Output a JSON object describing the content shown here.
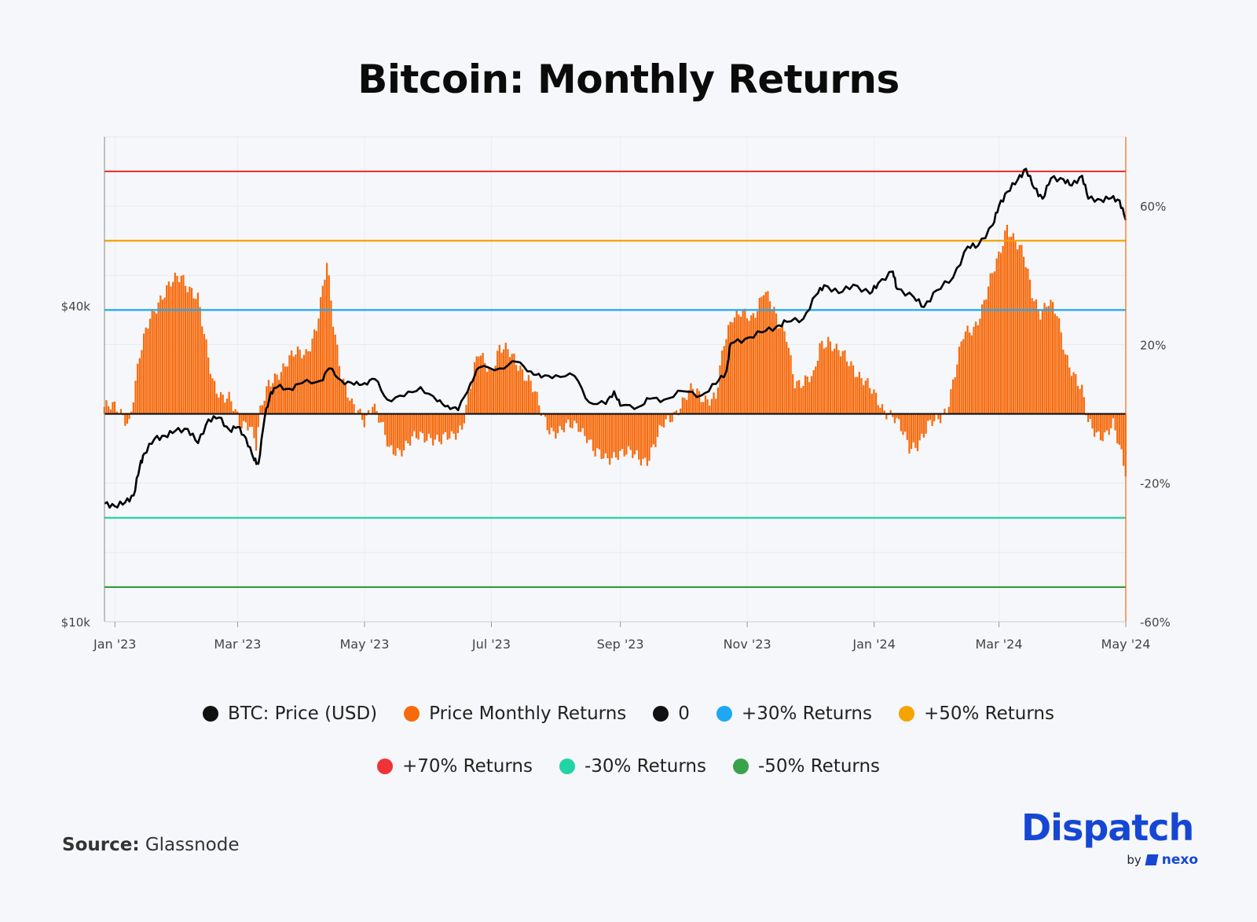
{
  "title": "Bitcoin: Monthly Returns",
  "source_label": "Source:",
  "source_value": "Glassnode",
  "logo": {
    "name": "Dispatch",
    "by": "by",
    "brand": "nexo"
  },
  "chart_data": {
    "type": "bar",
    "x_start": "2022-12-27",
    "x_end": "2024-05-01",
    "x_ticks": [
      {
        "date": "2023-01-01",
        "label": "Jan '23"
      },
      {
        "date": "2023-03-01",
        "label": "Mar '23"
      },
      {
        "date": "2023-05-01",
        "label": "May '23"
      },
      {
        "date": "2023-07-01",
        "label": "Jul '23"
      },
      {
        "date": "2023-09-01",
        "label": "Sep '23"
      },
      {
        "date": "2023-11-01",
        "label": "Nov '23"
      },
      {
        "date": "2024-01-01",
        "label": "Jan '24"
      },
      {
        "date": "2024-03-01",
        "label": "Mar '24"
      },
      {
        "date": "2024-05-01",
        "label": "May '24"
      }
    ],
    "y_left": {
      "scale": "log",
      "range": [
        10000,
        84000
      ],
      "ticks": [
        {
          "value": 40000,
          "label": "$40k"
        },
        {
          "value": 10000,
          "label": "$10k"
        }
      ]
    },
    "y_right": {
      "range": [
        -60,
        80
      ],
      "ticks": [
        {
          "value": 60,
          "label": "60%"
        },
        {
          "value": 20,
          "label": "20%"
        },
        {
          "value": -20,
          "label": "-20%"
        },
        {
          "value": -60,
          "label": "-60%"
        }
      ]
    },
    "reference_lines": [
      {
        "name": "0",
        "value": 0,
        "color": "#111111"
      },
      {
        "name": "+30% Returns",
        "value": 30,
        "color": "#1ea7f2"
      },
      {
        "name": "+50% Returns",
        "value": 50,
        "color": "#f5a300"
      },
      {
        "name": "+70% Returns",
        "value": 70,
        "color": "#e8353a"
      },
      {
        "name": "-30% Returns",
        "value": -30,
        "color": "#22d3a6"
      },
      {
        "name": "-50% Returns",
        "value": -50,
        "color": "#2e9e3c"
      }
    ],
    "series": [
      {
        "name": "BTC: Price (USD)",
        "axis": "left",
        "color": "#000000",
        "points": [
          [
            "2022-12-27",
            16800
          ],
          [
            "2023-01-01",
            16600
          ],
          [
            "2023-01-06",
            16900
          ],
          [
            "2023-01-10",
            17400
          ],
          [
            "2023-01-13",
            19800
          ],
          [
            "2023-01-15",
            20900
          ],
          [
            "2023-01-20",
            22300
          ],
          [
            "2023-01-25",
            22600
          ],
          [
            "2023-01-30",
            23100
          ],
          [
            "2023-02-05",
            23300
          ],
          [
            "2023-02-10",
            21900
          ],
          [
            "2023-02-15",
            24300
          ],
          [
            "2023-02-20",
            24500
          ],
          [
            "2023-02-25",
            23200
          ],
          [
            "2023-03-01",
            23500
          ],
          [
            "2023-03-05",
            22400
          ],
          [
            "2023-03-09",
            20300
          ],
          [
            "2023-03-11",
            20000
          ],
          [
            "2023-03-14",
            24500
          ],
          [
            "2023-03-17",
            27400
          ],
          [
            "2023-03-20",
            28000
          ],
          [
            "2023-03-26",
            27800
          ],
          [
            "2023-04-01",
            28500
          ],
          [
            "2023-04-10",
            28800
          ],
          [
            "2023-04-14",
            30400
          ],
          [
            "2023-04-20",
            28800
          ],
          [
            "2023-04-26",
            28300
          ],
          [
            "2023-05-01",
            28500
          ],
          [
            "2023-05-06",
            29000
          ],
          [
            "2023-05-12",
            26500
          ],
          [
            "2023-05-20",
            26900
          ],
          [
            "2023-05-28",
            28000
          ],
          [
            "2023-06-05",
            26300
          ],
          [
            "2023-06-10",
            25800
          ],
          [
            "2023-06-15",
            25300
          ],
          [
            "2023-06-21",
            28500
          ],
          [
            "2023-06-25",
            30500
          ],
          [
            "2023-07-05",
            30400
          ],
          [
            "2023-07-13",
            31300
          ],
          [
            "2023-07-20",
            30000
          ],
          [
            "2023-07-25",
            29200
          ],
          [
            "2023-08-01",
            29500
          ],
          [
            "2023-08-10",
            29400
          ],
          [
            "2023-08-17",
            26200
          ],
          [
            "2023-08-25",
            26000
          ],
          [
            "2023-08-29",
            27500
          ],
          [
            "2023-09-01",
            25800
          ],
          [
            "2023-09-10",
            25700
          ],
          [
            "2023-09-15",
            26600
          ],
          [
            "2023-09-22",
            26500
          ],
          [
            "2023-10-01",
            27500
          ],
          [
            "2023-10-10",
            27000
          ],
          [
            "2023-10-17",
            28400
          ],
          [
            "2023-10-22",
            30000
          ],
          [
            "2023-10-24",
            33900
          ],
          [
            "2023-10-31",
            34600
          ],
          [
            "2023-11-08",
            35600
          ],
          [
            "2023-11-15",
            36500
          ],
          [
            "2023-11-20",
            37300
          ],
          [
            "2023-11-28",
            37800
          ],
          [
            "2023-12-04",
            41900
          ],
          [
            "2023-12-08",
            43800
          ],
          [
            "2023-12-15",
            42300
          ],
          [
            "2023-12-22",
            43900
          ],
          [
            "2023-12-30",
            42200
          ],
          [
            "2024-01-03",
            44200
          ],
          [
            "2024-01-10",
            46500
          ],
          [
            "2024-01-12",
            43100
          ],
          [
            "2024-01-20",
            41600
          ],
          [
            "2024-01-25",
            39800
          ],
          [
            "2024-01-31",
            42800
          ],
          [
            "2024-02-08",
            45300
          ],
          [
            "2024-02-15",
            51900
          ],
          [
            "2024-02-20",
            52100
          ],
          [
            "2024-02-27",
            57000
          ],
          [
            "2024-03-01",
            62000
          ],
          [
            "2024-03-05",
            66000
          ],
          [
            "2024-03-10",
            69500
          ],
          [
            "2024-03-14",
            73000
          ],
          [
            "2024-03-18",
            67000
          ],
          [
            "2024-03-22",
            64000
          ],
          [
            "2024-03-26",
            70000
          ],
          [
            "2024-04-01",
            69700
          ],
          [
            "2024-04-05",
            67800
          ],
          [
            "2024-04-10",
            70800
          ],
          [
            "2024-04-13",
            64000
          ],
          [
            "2024-04-19",
            63700
          ],
          [
            "2024-04-24",
            64200
          ],
          [
            "2024-04-28",
            63500
          ],
          [
            "2024-05-01",
            58300
          ]
        ]
      },
      {
        "name": "Price Monthly Returns",
        "axis": "right",
        "color": "#f76a0c",
        "points": [
          [
            "2022-12-27",
            2
          ],
          [
            "2023-01-03",
            1
          ],
          [
            "2023-01-08",
            -2
          ],
          [
            "2023-01-13",
            16
          ],
          [
            "2023-01-18",
            28
          ],
          [
            "2023-01-22",
            33
          ],
          [
            "2023-01-28",
            37
          ],
          [
            "2023-02-02",
            40
          ],
          [
            "2023-02-06",
            37
          ],
          [
            "2023-02-10",
            33
          ],
          [
            "2023-02-13",
            22
          ],
          [
            "2023-02-17",
            10
          ],
          [
            "2023-02-21",
            6
          ],
          [
            "2023-02-25",
            4
          ],
          [
            "2023-03-02",
            -3
          ],
          [
            "2023-03-07",
            -2
          ],
          [
            "2023-03-10",
            -9
          ],
          [
            "2023-03-12",
            0
          ],
          [
            "2023-03-16",
            8
          ],
          [
            "2023-03-20",
            12
          ],
          [
            "2023-03-25",
            15
          ],
          [
            "2023-03-29",
            17
          ],
          [
            "2023-04-03",
            18
          ],
          [
            "2023-04-08",
            25
          ],
          [
            "2023-04-11",
            35
          ],
          [
            "2023-04-13",
            43
          ],
          [
            "2023-04-16",
            27
          ],
          [
            "2023-04-20",
            12
          ],
          [
            "2023-04-25",
            2
          ],
          [
            "2023-05-01",
            -2
          ],
          [
            "2023-05-05",
            4
          ],
          [
            "2023-05-09",
            -3
          ],
          [
            "2023-05-13",
            -11
          ],
          [
            "2023-05-18",
            -10
          ],
          [
            "2023-05-23",
            -8
          ],
          [
            "2023-05-28",
            -7
          ],
          [
            "2023-06-02",
            -6
          ],
          [
            "2023-06-07",
            -8
          ],
          [
            "2023-06-12",
            -7
          ],
          [
            "2023-06-17",
            -3
          ],
          [
            "2023-06-21",
            8
          ],
          [
            "2023-06-25",
            17
          ],
          [
            "2023-07-01",
            13
          ],
          [
            "2023-07-05",
            19
          ],
          [
            "2023-07-10",
            17
          ],
          [
            "2023-07-15",
            14
          ],
          [
            "2023-07-20",
            9
          ],
          [
            "2023-07-25",
            0
          ],
          [
            "2023-07-29",
            -4
          ],
          [
            "2023-08-03",
            -5
          ],
          [
            "2023-08-08",
            -4
          ],
          [
            "2023-08-12",
            -3
          ],
          [
            "2023-08-16",
            -6
          ],
          [
            "2023-08-20",
            -12
          ],
          [
            "2023-08-25",
            -13
          ],
          [
            "2023-08-30",
            -11
          ],
          [
            "2023-09-04",
            -12
          ],
          [
            "2023-09-09",
            -12
          ],
          [
            "2023-09-14",
            -13
          ],
          [
            "2023-09-18",
            -9
          ],
          [
            "2023-09-22",
            -3
          ],
          [
            "2023-09-26",
            0
          ],
          [
            "2023-10-01",
            3
          ],
          [
            "2023-10-06",
            7
          ],
          [
            "2023-10-12",
            5
          ],
          [
            "2023-10-17",
            4
          ],
          [
            "2023-10-21",
            20
          ],
          [
            "2023-10-25",
            29
          ],
          [
            "2023-10-29",
            30
          ],
          [
            "2023-11-03",
            26
          ],
          [
            "2023-11-06",
            30
          ],
          [
            "2023-11-09",
            37
          ],
          [
            "2023-11-12",
            34
          ],
          [
            "2023-11-16",
            25
          ],
          [
            "2023-11-20",
            22
          ],
          [
            "2023-11-24",
            10
          ],
          [
            "2023-11-28",
            9
          ],
          [
            "2023-12-03",
            10
          ],
          [
            "2023-12-06",
            20
          ],
          [
            "2023-12-10",
            22
          ],
          [
            "2023-12-14",
            18
          ],
          [
            "2023-12-18",
            16
          ],
          [
            "2023-12-22",
            14
          ],
          [
            "2023-12-27",
            10
          ],
          [
            "2024-01-01",
            5
          ],
          [
            "2024-01-05",
            2
          ],
          [
            "2024-01-10",
            0
          ],
          [
            "2024-01-14",
            -5
          ],
          [
            "2024-01-18",
            -10
          ],
          [
            "2024-01-22",
            -8
          ],
          [
            "2024-01-27",
            -4
          ],
          [
            "2024-02-01",
            -2
          ],
          [
            "2024-02-05",
            2
          ],
          [
            "2024-02-09",
            12
          ],
          [
            "2024-02-13",
            22
          ],
          [
            "2024-02-18",
            25
          ],
          [
            "2024-02-22",
            31
          ],
          [
            "2024-02-26",
            38
          ],
          [
            "2024-03-01",
            45
          ],
          [
            "2024-03-05",
            55
          ],
          [
            "2024-03-09",
            50
          ],
          [
            "2024-03-13",
            45
          ],
          [
            "2024-03-17",
            35
          ],
          [
            "2024-03-21",
            30
          ],
          [
            "2024-03-25",
            32
          ],
          [
            "2024-03-29",
            28
          ],
          [
            "2024-04-02",
            18
          ],
          [
            "2024-04-06",
            12
          ],
          [
            "2024-04-10",
            6
          ],
          [
            "2024-04-13",
            -3
          ],
          [
            "2024-04-17",
            -5
          ],
          [
            "2024-04-21",
            -6
          ],
          [
            "2024-04-25",
            -4
          ],
          [
            "2024-04-29",
            -12
          ],
          [
            "2024-05-01",
            -16
          ]
        ]
      }
    ],
    "legend": {
      "placement": "bottom",
      "rows": [
        [
          {
            "label": "BTC: Price (USD)",
            "color": "#111111"
          },
          {
            "label": "Price Monthly Returns",
            "color": "#f76a0c"
          },
          {
            "label": "0",
            "color": "#111111"
          },
          {
            "label": "+30% Returns",
            "color": "#1ea7f2"
          },
          {
            "label": "+50% Returns",
            "color": "#f5a300"
          }
        ],
        [
          {
            "label": "+70% Returns",
            "color": "#f03337"
          },
          {
            "label": "-30% Returns",
            "color": "#22d3a6"
          },
          {
            "label": "-50% Returns",
            "color": "#3aa34a"
          }
        ]
      ]
    },
    "grid": true
  }
}
